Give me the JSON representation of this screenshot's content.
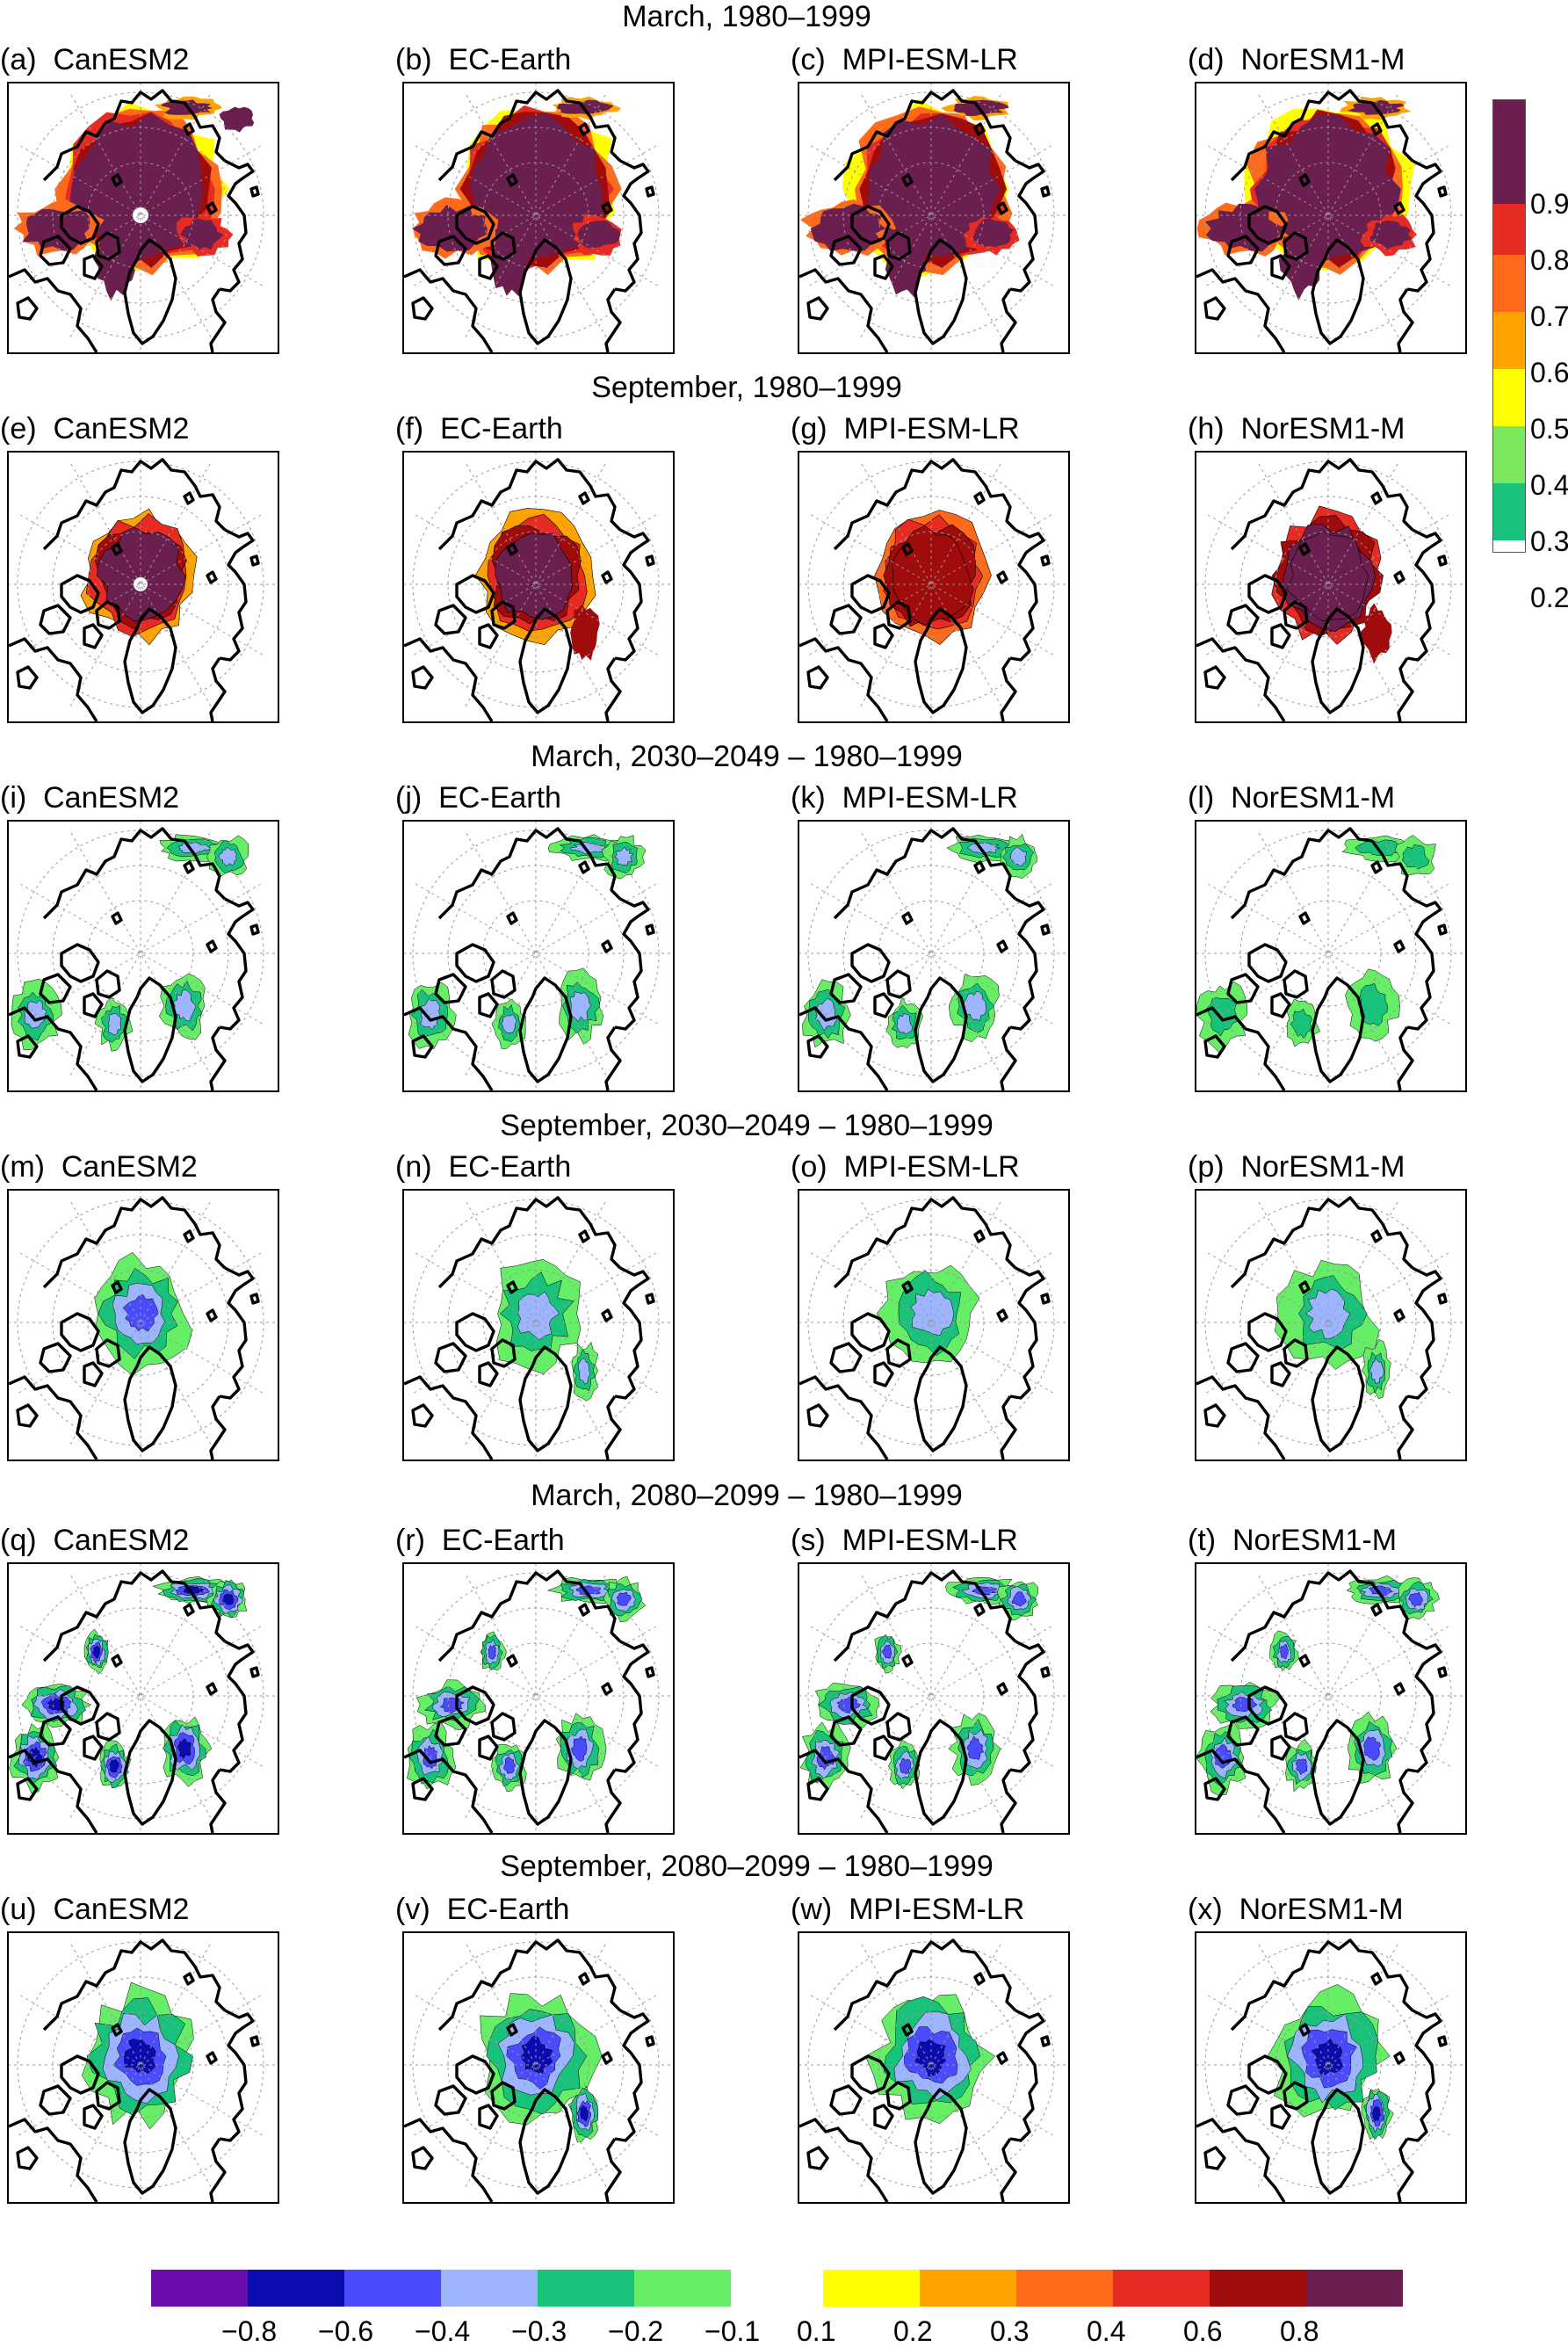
{
  "row_titles": [
    "March, 1980–1999",
    "September, 1980–1999",
    "March, 2030–2049 – 1980–1999",
    "September, 2030–2049 – 1980–1999",
    "March, 2080–2099 – 1980–1999",
    "September, 2080–2099 – 1980–1999"
  ],
  "panels": [
    {
      "letter": "(a)",
      "model": "CanESM2",
      "row": 0,
      "col": 0,
      "kind": "clim",
      "season": "mar",
      "mod": 0
    },
    {
      "letter": "(b)",
      "model": "EC-Earth",
      "row": 0,
      "col": 1,
      "kind": "clim",
      "season": "mar",
      "mod": 1
    },
    {
      "letter": "(c)",
      "model": "MPI-ESM-LR",
      "row": 0,
      "col": 2,
      "kind": "clim",
      "season": "mar",
      "mod": 2
    },
    {
      "letter": "(d)",
      "model": "NorESM1-M",
      "row": 0,
      "col": 3,
      "kind": "clim",
      "season": "mar",
      "mod": 3
    },
    {
      "letter": "(e)",
      "model": "CanESM2",
      "row": 1,
      "col": 0,
      "kind": "clim",
      "season": "sep",
      "mod": 0
    },
    {
      "letter": "(f)",
      "model": "EC-Earth",
      "row": 1,
      "col": 1,
      "kind": "clim",
      "season": "sep",
      "mod": 1
    },
    {
      "letter": "(g)",
      "model": "MPI-ESM-LR",
      "row": 1,
      "col": 2,
      "kind": "clim",
      "season": "sep",
      "mod": 2
    },
    {
      "letter": "(h)",
      "model": "NorESM1-M",
      "row": 1,
      "col": 3,
      "kind": "clim",
      "season": "sep",
      "mod": 3
    },
    {
      "letter": "(i)",
      "model": "CanESM2",
      "row": 2,
      "col": 0,
      "kind": "diff",
      "season": "mar",
      "mod": 0,
      "mag": 0.5
    },
    {
      "letter": "(j)",
      "model": "EC-Earth",
      "row": 2,
      "col": 1,
      "kind": "diff",
      "season": "mar",
      "mod": 1,
      "mag": 0.5
    },
    {
      "letter": "(k)",
      "model": "MPI-ESM-LR",
      "row": 2,
      "col": 2,
      "kind": "diff",
      "season": "mar",
      "mod": 2,
      "mag": 0.45
    },
    {
      "letter": "(l)",
      "model": "NorESM1-M",
      "row": 2,
      "col": 3,
      "kind": "diff",
      "season": "mar",
      "mod": 3,
      "mag": 0.4
    },
    {
      "letter": "(m)",
      "model": "CanESM2",
      "row": 3,
      "col": 0,
      "kind": "diff",
      "season": "sep",
      "mod": 0,
      "mag": 0.7
    },
    {
      "letter": "(n)",
      "model": "EC-Earth",
      "row": 3,
      "col": 1,
      "kind": "diff",
      "season": "sep",
      "mod": 1,
      "mag": 0.55
    },
    {
      "letter": "(o)",
      "model": "MPI-ESM-LR",
      "row": 3,
      "col": 2,
      "kind": "diff",
      "season": "sep",
      "mod": 2,
      "mag": 0.45
    },
    {
      "letter": "(p)",
      "model": "NorESM1-M",
      "row": 3,
      "col": 3,
      "kind": "diff",
      "season": "sep",
      "mod": 3,
      "mag": 0.5
    },
    {
      "letter": "(q)",
      "model": "CanESM2",
      "row": 4,
      "col": 0,
      "kind": "diff",
      "season": "mar",
      "mod": 0,
      "mag": 0.75
    },
    {
      "letter": "(r)",
      "model": "EC-Earth",
      "row": 4,
      "col": 1,
      "kind": "diff",
      "season": "mar",
      "mod": 1,
      "mag": 0.7
    },
    {
      "letter": "(s)",
      "model": "MPI-ESM-LR",
      "row": 4,
      "col": 2,
      "kind": "diff",
      "season": "mar",
      "mod": 2,
      "mag": 0.6
    },
    {
      "letter": "(t)",
      "model": "NorESM1-M",
      "row": 4,
      "col": 3,
      "kind": "diff",
      "season": "mar",
      "mod": 3,
      "mag": 0.6
    },
    {
      "letter": "(u)",
      "model": "CanESM2",
      "row": 5,
      "col": 0,
      "kind": "diff",
      "season": "sep",
      "mod": 0,
      "mag": 0.75
    },
    {
      "letter": "(v)",
      "model": "EC-Earth",
      "row": 5,
      "col": 1,
      "kind": "diff",
      "season": "sep",
      "mod": 1,
      "mag": 0.9
    },
    {
      "letter": "(w)",
      "model": "MPI-ESM-LR",
      "row": 5,
      "col": 2,
      "kind": "diff",
      "season": "sep",
      "mod": 2,
      "mag": 0.9
    },
    {
      "letter": "(x)",
      "model": "NorESM1-M",
      "row": 5,
      "col": 3,
      "kind": "diff",
      "season": "sep",
      "mod": 3,
      "mag": 0.9
    }
  ],
  "colorbar_vertical": {
    "labels": [
      "0.9",
      "0.8",
      "0.7",
      "0.6",
      "0.5",
      "0.4",
      "0.3",
      "0.2"
    ],
    "colors": [
      "#6b1f4e",
      "#a00b0b",
      "#e52b22",
      "#ff6a1a",
      "#ffa300",
      "#ffff00",
      "#7ae85a",
      "#19c27a"
    ]
  },
  "colorbar_horizontal_negative": {
    "labels": [
      "−0.8",
      "−0.6",
      "−0.4",
      "−0.3",
      "−0.2",
      "−0.1"
    ],
    "colors": [
      "#6a0dad",
      "#0b0bb0",
      "#4a4aff",
      "#9db4ff",
      "#19c27a",
      "#66ee66"
    ]
  },
  "colorbar_horizontal_positive": {
    "labels": [
      "0.1",
      "0.2",
      "0.3",
      "0.4",
      "0.6",
      "0.8"
    ],
    "colors": [
      "#ffff00",
      "#ffa300",
      "#ff6a1a",
      "#e52b22",
      "#a00b0b",
      "#6b1f4e"
    ]
  }
}
